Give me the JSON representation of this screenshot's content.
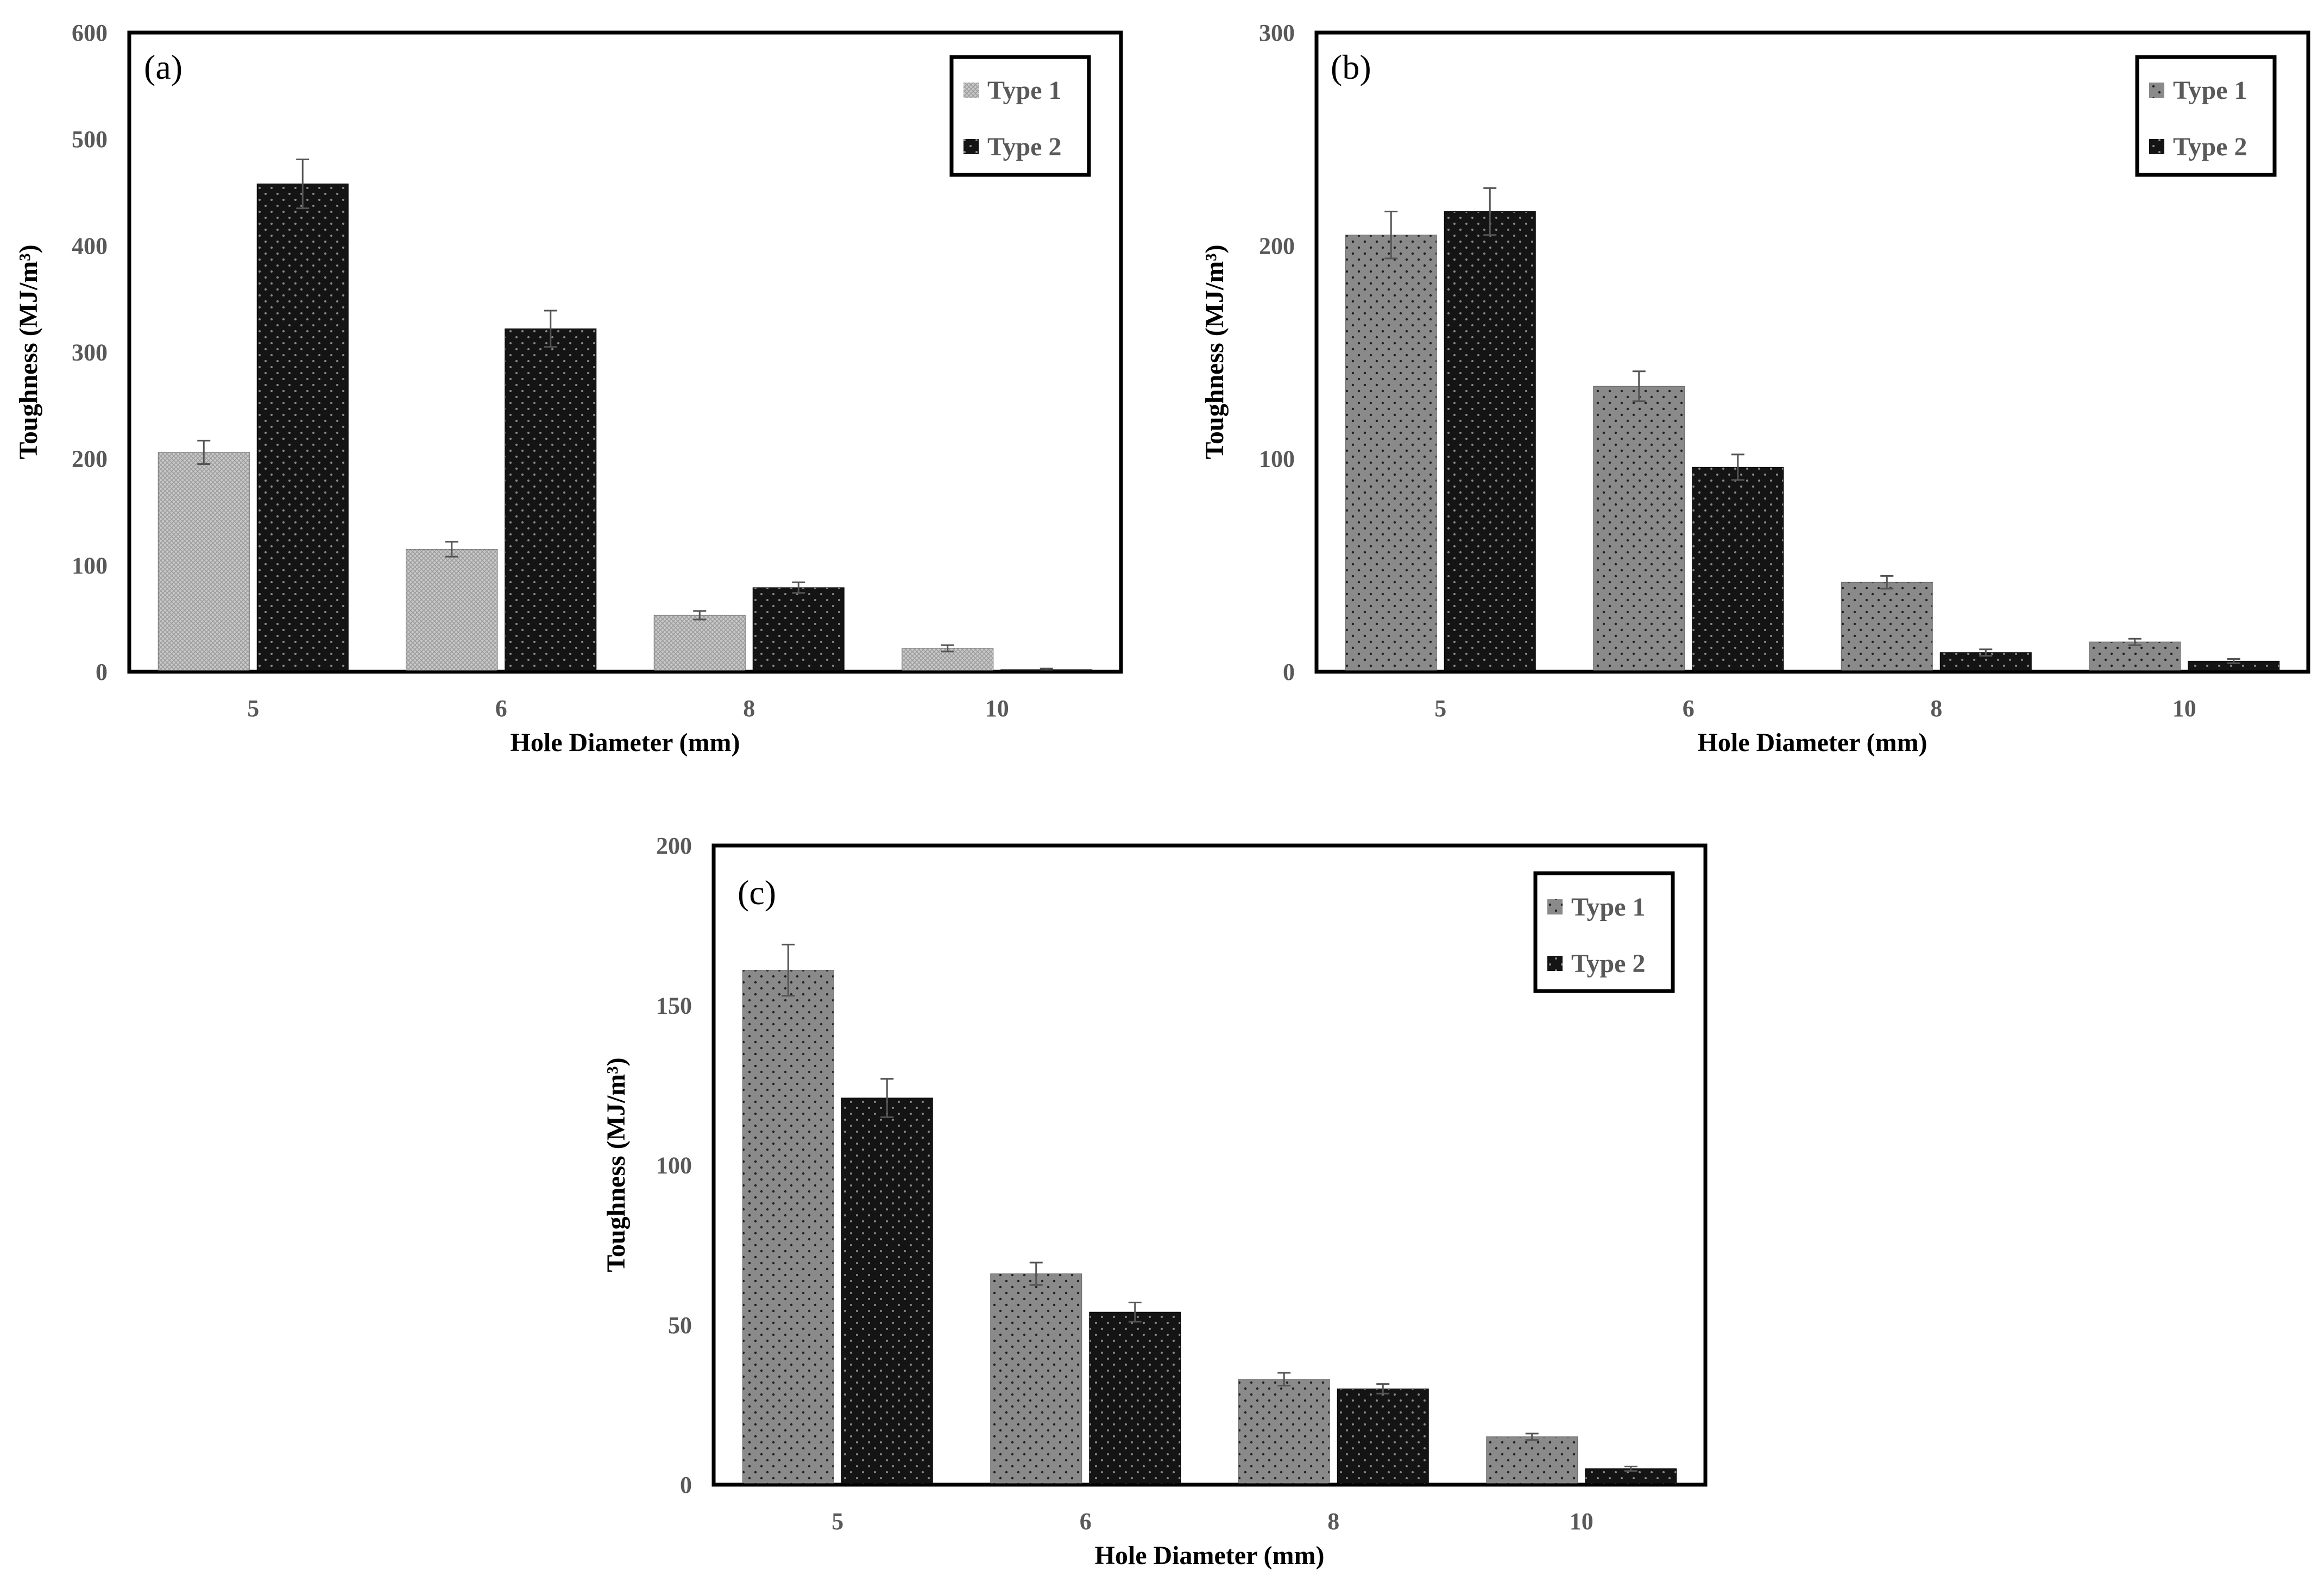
{
  "colors": {
    "type1_panel_a": "#c8c8c8",
    "type1": "#8a8a8a",
    "type2": "#141414",
    "axis": "#000000",
    "tick_text": "#595959"
  },
  "chart_data": [
    {
      "type": "bar",
      "panel": "(a)",
      "categories": [
        "5",
        "6",
        "8",
        "10"
      ],
      "series": [
        {
          "name": "Type 1",
          "values": [
            206,
            115,
            53,
            22
          ],
          "errors": [
            11,
            7,
            4,
            3
          ]
        },
        {
          "name": "Type 2",
          "values": [
            458,
            322,
            79,
            2
          ],
          "errors": [
            23,
            17,
            5,
            1
          ]
        }
      ],
      "xlabel": "Hole Diameter  (mm)",
      "ylabel": "Toughness (MJ/m³)",
      "ylim": [
        0,
        600
      ],
      "yticks": [
        "0",
        "100",
        "200",
        "300",
        "400",
        "500",
        "600"
      ],
      "legend": "top-right"
    },
    {
      "type": "bar",
      "panel": "(b)",
      "categories": [
        "5",
        "6",
        "8",
        "10"
      ],
      "series": [
        {
          "name": "Type 1",
          "values": [
            205,
            134,
            42,
            14
          ],
          "errors": [
            11,
            7,
            3,
            1.5
          ]
        },
        {
          "name": "Type 2",
          "values": [
            216,
            96,
            9,
            5
          ],
          "errors": [
            11,
            6,
            1.5,
            1
          ]
        }
      ],
      "xlabel": "Hole Diameter  (mm)",
      "ylabel": "Toughness (MJ/m³)",
      "ylim": [
        0,
        300
      ],
      "yticks": [
        "0",
        "100",
        "200",
        "300"
      ],
      "legend": "top-right"
    },
    {
      "type": "bar",
      "panel": "(c)",
      "categories": [
        "5",
        "6",
        "8",
        "10"
      ],
      "series": [
        {
          "name": "Type 1",
          "values": [
            161,
            66,
            33,
            15
          ],
          "errors": [
            8,
            3.5,
            2,
            1
          ]
        },
        {
          "name": "Type 2",
          "values": [
            121,
            54,
            30,
            5
          ],
          "errors": [
            6,
            3,
            1.5,
            0.7
          ]
        }
      ],
      "xlabel": "Hole Diameter  (mm)",
      "ylabel": "Toughness (MJ/m³)",
      "ylim": [
        0,
        200
      ],
      "yticks": [
        "0",
        "50",
        "100",
        "150",
        "200"
      ],
      "legend": "top-right"
    }
  ]
}
